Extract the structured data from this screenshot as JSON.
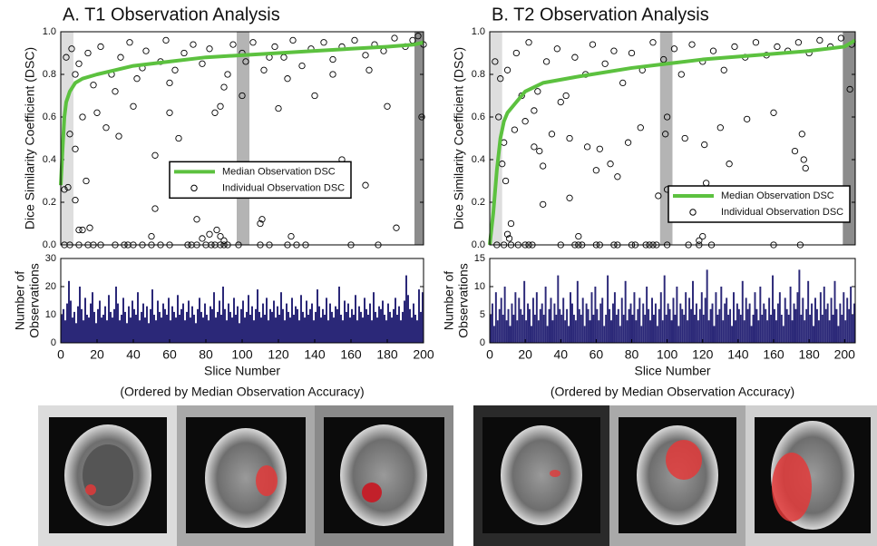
{
  "chart_data": [
    {
      "type": "scatter",
      "title": "A. T1 Observation Analysis",
      "ylabel": "Dice Similarity Coefficient (DSC)",
      "xlim": [
        0,
        200
      ],
      "ylim": [
        0,
        1
      ],
      "yticks": [
        {
          "value": 0,
          "label": "0.0"
        },
        0.2,
        0.4,
        0.6,
        0.8,
        {
          "value": 1,
          "label": "1.0"
        }
      ],
      "shading": [
        {
          "range": [
            0,
            7
          ],
          "color": "#dedede"
        },
        {
          "range": [
            97,
            104
          ],
          "color": "#b4b4b4"
        },
        {
          "range": [
            195,
            200
          ],
          "color": "#8c8c8c"
        }
      ],
      "legend": "center",
      "series": [
        {
          "name": "Median Observation DSC",
          "color": "#5cc13f",
          "style": "line",
          "x": [
            0,
            1,
            2,
            3,
            5,
            8,
            12,
            20,
            30,
            40,
            60,
            80,
            100,
            120,
            140,
            160,
            180,
            195,
            200
          ],
          "values": [
            0.28,
            0.45,
            0.6,
            0.67,
            0.72,
            0.76,
            0.78,
            0.8,
            0.82,
            0.84,
            0.86,
            0.88,
            0.89,
            0.9,
            0.91,
            0.92,
            0.93,
            0.94,
            0.95
          ]
        },
        {
          "name": "Individual Observation DSC",
          "color": "#000000",
          "style": "markers",
          "x": [
            2,
            5,
            10,
            15,
            18,
            22,
            30,
            35,
            37,
            40,
            45,
            50,
            55,
            60,
            70,
            72,
            75,
            80,
            83,
            85,
            88,
            90,
            92,
            98,
            110,
            115,
            125,
            130,
            135,
            160,
            175,
            8,
            10,
            12,
            14,
            16,
            52,
            50,
            78,
            82,
            86,
            88,
            90,
            110,
            111,
            127,
            168,
            185,
            75,
            4,
            2,
            5,
            8,
            12,
            20,
            25,
            32,
            40,
            52,
            60,
            65,
            85,
            88,
            100,
            120,
            155,
            199,
            180,
            140,
            3,
            6,
            10,
            15,
            18,
            22,
            28,
            33,
            38,
            42,
            47,
            55,
            58,
            63,
            68,
            73,
            78,
            82,
            92,
            95,
            102,
            106,
            112,
            118,
            123,
            128,
            133,
            138,
            145,
            150,
            155,
            162,
            168,
            173,
            178,
            184,
            190,
            194,
            197,
            200,
            30,
            60,
            90,
            125,
            150,
            170,
            8,
            45,
            100,
            115
          ],
          "values": [
            0,
            0,
            0,
            0,
            0,
            0,
            0,
            0,
            0,
            0,
            0,
            0,
            0,
            0,
            0,
            0,
            0,
            0,
            0,
            0,
            0,
            0,
            0,
            0,
            0,
            0,
            0,
            0,
            0,
            0,
            0,
            0.21,
            0.07,
            0.07,
            0.3,
            0.08,
            0.17,
            0.04,
            0.03,
            0.05,
            0.07,
            0.04,
            0.02,
            0.1,
            0.12,
            0.04,
            0.28,
            0.08,
            0.12,
            0.27,
            0.26,
            0.52,
            0.45,
            0.6,
            0.62,
            0.55,
            0.51,
            0.65,
            0.42,
            0.62,
            0.5,
            0.62,
            0.65,
            0.7,
            0.64,
            0.4,
            0.6,
            0.65,
            0.7,
            0.88,
            0.92,
            0.85,
            0.9,
            0.75,
            0.93,
            0.8,
            0.88,
            0.95,
            0.78,
            0.91,
            0.86,
            0.96,
            0.82,
            0.9,
            0.94,
            0.85,
            0.92,
            0.8,
            0.94,
            0.86,
            0.95,
            0.82,
            0.93,
            0.88,
            0.96,
            0.84,
            0.92,
            0.95,
            0.87,
            0.93,
            0.96,
            0.89,
            0.94,
            0.91,
            0.97,
            0.93,
            0.96,
            0.98,
            0.94,
            0.72,
            0.76,
            0.74,
            0.78,
            0.8,
            0.82,
            0.8,
            0.83,
            0.9,
            0.88
          ]
        }
      ]
    },
    {
      "type": "bar",
      "ylabel": [
        "Number of",
        "Observations"
      ],
      "xlabel": "Slice Number",
      "note": "(Ordered by Median Observation Accuracy)",
      "color": "#2b2878",
      "xlim": [
        0,
        200
      ],
      "xticks": [
        0,
        20,
        40,
        60,
        80,
        100,
        120,
        140,
        160,
        180,
        200
      ],
      "ylim": [
        0,
        30
      ],
      "yticks": [
        0,
        10,
        20,
        30
      ],
      "values": [
        10,
        12,
        8,
        14,
        22,
        15,
        9,
        11,
        7,
        13,
        20,
        12,
        8,
        16,
        10,
        9,
        14,
        18,
        11,
        7,
        12,
        15,
        9,
        10,
        13,
        8,
        17,
        11,
        9,
        12,
        20,
        14,
        8,
        10,
        16,
        11,
        7,
        13,
        9,
        15,
        12,
        10,
        18,
        8,
        11,
        14,
        9,
        13,
        7,
        12,
        19,
        10,
        8,
        15,
        11,
        9,
        14,
        12,
        10,
        16,
        8,
        13,
        11,
        9,
        17,
        10,
        12,
        14,
        8,
        11,
        15,
        9,
        13,
        10,
        7,
        12,
        16,
        11,
        9,
        14,
        10,
        8,
        13,
        12,
        18,
        9,
        11,
        15,
        10,
        20,
        12,
        8,
        14,
        11,
        9,
        16,
        10,
        13,
        7,
        12,
        15,
        9,
        11,
        17,
        10,
        13,
        8,
        12,
        19,
        11,
        9,
        14,
        10,
        16,
        8,
        12,
        11,
        15,
        9,
        13,
        10,
        18,
        12,
        8,
        14,
        11,
        9,
        16,
        10,
        13,
        12,
        8,
        17,
        11,
        9,
        15,
        10,
        12,
        14,
        8,
        11,
        19,
        13,
        9,
        12,
        10,
        16,
        8,
        14,
        11,
        9,
        13,
        12,
        20,
        10,
        8,
        15,
        11,
        14,
        9,
        12,
        10,
        17,
        8,
        13,
        11,
        9,
        16,
        12,
        10,
        14,
        8,
        18,
        11,
        9,
        13,
        12,
        15,
        10,
        8,
        14,
        11,
        9,
        12,
        16,
        10,
        13,
        8,
        11,
        15,
        24,
        17,
        12,
        9,
        14,
        10,
        8,
        19,
        11,
        18
      ]
    },
    {
      "type": "scatter",
      "title": "B. T2 Observation Analysis",
      "ylabel": "Dice Similarity Coefficient (DSC)",
      "xlim": [
        0,
        206
      ],
      "ylim": [
        0,
        1
      ],
      "yticks": [
        {
          "value": 0,
          "label": "0.0"
        },
        0.2,
        0.4,
        0.6,
        0.8,
        {
          "value": 1,
          "label": "1.0"
        }
      ],
      "shading": [
        {
          "range": [
            0,
            7
          ],
          "color": "#dedede"
        },
        {
          "range": [
            96,
            103
          ],
          "color": "#b4b4b4"
        },
        {
          "range": [
            199,
            206
          ],
          "color": "#8c8c8c"
        }
      ],
      "legend": "lower right",
      "series": [
        {
          "name": "Median Observation DSC",
          "color": "#5cc13f",
          "style": "line",
          "x": [
            0,
            2,
            4,
            6,
            8,
            10,
            14,
            20,
            30,
            50,
            80,
            100,
            120,
            150,
            180,
            200,
            206
          ],
          "values": [
            0,
            0.15,
            0.35,
            0.5,
            0.58,
            0.62,
            0.66,
            0.72,
            0.76,
            0.79,
            0.83,
            0.85,
            0.87,
            0.89,
            0.91,
            0.93,
            0.96
          ]
        },
        {
          "name": "Individual Observation DSC",
          "color": "#000000",
          "style": "markers",
          "x": [
            4,
            8,
            12,
            16,
            20,
            22,
            24,
            40,
            48,
            50,
            52,
            60,
            62,
            70,
            72,
            80,
            82,
            88,
            90,
            92,
            94,
            100,
            112,
            118,
            125,
            160,
            175,
            10,
            11,
            12,
            50,
            118,
            120,
            7,
            9,
            30,
            45,
            60,
            68,
            72,
            95,
            100,
            122,
            135,
            177,
            178,
            172,
            30,
            5,
            8,
            14,
            20,
            25,
            28,
            35,
            45,
            55,
            62,
            78,
            85,
            99,
            110,
            121,
            130,
            145,
            160,
            176,
            203,
            100,
            3,
            6,
            10,
            15,
            18,
            22,
            27,
            32,
            38,
            43,
            48,
            54,
            58,
            65,
            70,
            75,
            80,
            86,
            92,
            98,
            104,
            108,
            114,
            120,
            126,
            132,
            138,
            144,
            150,
            156,
            162,
            168,
            174,
            180,
            186,
            192,
            198,
            204,
            25,
            40
          ],
          "values": [
            0,
            0,
            0,
            0,
            0,
            0,
            0,
            0,
            0,
            0,
            0,
            0,
            0,
            0,
            0,
            0,
            0,
            0,
            0,
            0,
            0,
            0,
            0,
            0,
            0,
            0,
            0,
            0.05,
            0.03,
            0.1,
            0.04,
            0.02,
            0.04,
            0.38,
            0.3,
            0.19,
            0.22,
            0.35,
            0.38,
            0.32,
            0.23,
            0.26,
            0.29,
            0.38,
            0.4,
            0.36,
            0.44,
            0.37,
            0.6,
            0.48,
            0.54,
            0.58,
            0.46,
            0.44,
            0.52,
            0.5,
            0.46,
            0.45,
            0.48,
            0.55,
            0.52,
            0.5,
            0.47,
            0.55,
            0.59,
            0.62,
            0.52,
            0.73,
            0.6,
            0.86,
            0.78,
            0.82,
            0.9,
            0.7,
            0.95,
            0.72,
            0.86,
            0.92,
            0.7,
            0.88,
            0.8,
            0.94,
            0.85,
            0.91,
            0.76,
            0.9,
            0.82,
            0.95,
            0.87,
            0.92,
            0.8,
            0.94,
            0.86,
            0.91,
            0.82,
            0.93,
            0.88,
            0.95,
            0.89,
            0.93,
            0.91,
            0.95,
            0.9,
            0.96,
            0.93,
            0.97,
            0.94,
            0.63,
            0.67
          ]
        }
      ]
    },
    {
      "type": "bar",
      "ylabel": [
        "Number of",
        "Observations"
      ],
      "xlabel": "Slice Number",
      "note": "(Ordered by Median Observation Accuracy)",
      "color": "#2b2878",
      "xlim": [
        0,
        206
      ],
      "xticks": [
        0,
        20,
        40,
        60,
        80,
        100,
        120,
        140,
        160,
        180,
        200
      ],
      "ylim": [
        0,
        15
      ],
      "yticks": [
        0,
        5,
        10,
        15
      ],
      "values": [
        5,
        7,
        3,
        9,
        4,
        6,
        8,
        5,
        10,
        4,
        6,
        3,
        7,
        5,
        9,
        4,
        8,
        6,
        5,
        11,
        4,
        7,
        6,
        3,
        8,
        5,
        9,
        4,
        6,
        7,
        5,
        10,
        3,
        6,
        8,
        4,
        7,
        5,
        12,
        6,
        5,
        8,
        4,
        6,
        3,
        9,
        7,
        5,
        4,
        11,
        6,
        5,
        8,
        3,
        7,
        6,
        4,
        9,
        5,
        10,
        6,
        4,
        7,
        8,
        3,
        5,
        12,
        6,
        4,
        7,
        9,
        5,
        6,
        3,
        8,
        5,
        11,
        4,
        6,
        7,
        5,
        9,
        4,
        6,
        8,
        3,
        7,
        5,
        10,
        6,
        4,
        8,
        5,
        7,
        3,
        6,
        9,
        4,
        12,
        5,
        7,
        6,
        4,
        8,
        5,
        10,
        3,
        7,
        6,
        5,
        9,
        4,
        8,
        6,
        11,
        5,
        7,
        4,
        6,
        9,
        5,
        8,
        13,
        4,
        6,
        7,
        3,
        9,
        5,
        6,
        10,
        4,
        7,
        8,
        5,
        6,
        3,
        9,
        4,
        7,
        6,
        5,
        11,
        4,
        8,
        6,
        7,
        3,
        5,
        9,
        6,
        4,
        10,
        5,
        7,
        6,
        4,
        8,
        5,
        12,
        6,
        4,
        7,
        9,
        5,
        3,
        8,
        6,
        5,
        10,
        4,
        7,
        6,
        9,
        13,
        5,
        8,
        4,
        6,
        11,
        5,
        7,
        3,
        8,
        6,
        4,
        9,
        5,
        10,
        6,
        7,
        4,
        8,
        5,
        11,
        6,
        3,
        7,
        5,
        9,
        4,
        8,
        6,
        10,
        5,
        7
      ]
    }
  ]
}
